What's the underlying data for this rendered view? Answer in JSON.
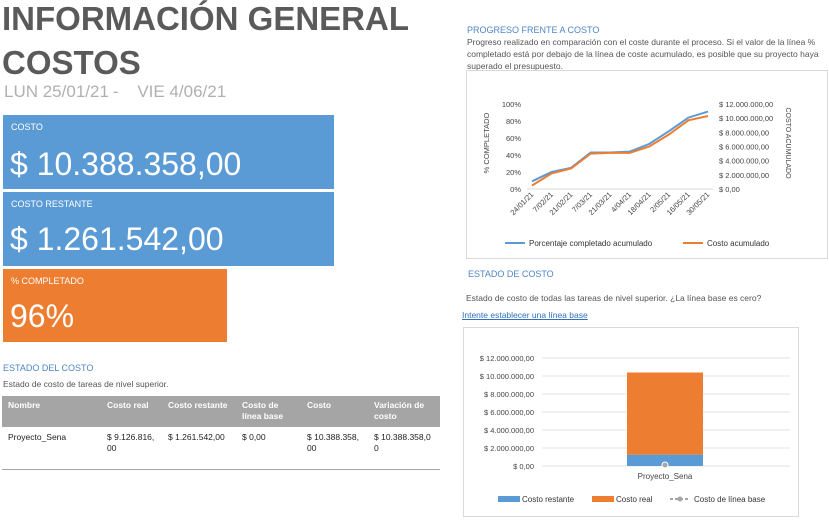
{
  "header": {
    "title_line1": "INFORMACIÓN GENERAL",
    "title_line2": "COSTOS",
    "date_start": "LUN 25/01/21",
    "date_sep": "-",
    "date_end": "VIE 4/06/21"
  },
  "kpis": {
    "costo": {
      "label": "COSTO",
      "value": "$ 10.388.358,00"
    },
    "costo_restante": {
      "label": "COSTO RESTANTE",
      "value": "$ 1.261.542,00"
    },
    "pct_completado": {
      "label": "% COMPLETADO",
      "value": "96%"
    }
  },
  "estado_del_costo": {
    "heading": "ESTADO DEL COSTO",
    "description": "Estado de costo de tareas de nivel superior.",
    "columns": [
      "Nombre",
      "Costo real",
      "Costo restante",
      "Costo de línea base",
      "Costo",
      "Variación de costo"
    ],
    "rows": [
      [
        "Proyecto_Sena",
        "$ 9.126.816,00",
        "$ 1.261.542,00",
        "$ 0,00",
        "$ 10.388.358,00",
        "$ 10.388.358,00"
      ]
    ]
  },
  "progreso": {
    "heading": "PROGRESO FRENTE A COSTO",
    "description": "Progreso realizado en comparación con el coste durante el proceso. Si el valor de la línea % completado está por debajo de la línea de coste acumulado, es posible que su proyecto haya superado el presupuesto."
  },
  "estado_de_costo": {
    "heading": "ESTADO DE COSTO",
    "description": "Estado de costo de todas las tareas de nivel superior. ¿La línea base es cero?",
    "link": "Intente establecer una línea base"
  },
  "colors": {
    "blue": "#5b9bd5",
    "orange": "#ed7d31",
    "gray": "#a5a5a5",
    "title": "#5a5a5a",
    "heading": "#4e86c6"
  },
  "chart_data": [
    {
      "type": "line",
      "x": [
        "24/01/21",
        "7/02/21",
        "21/02/21",
        "7/03/21",
        "21/03/21",
        "4/04/21",
        "18/04/21",
        "2/05/21",
        "16/05/21",
        "30/05/21"
      ],
      "series": [
        {
          "name": "Porcentaje completado acumulado",
          "axis": "left",
          "values": [
            0.09,
            0.2,
            0.25,
            0.43,
            0.43,
            0.44,
            0.53,
            0.68,
            0.84,
            0.91
          ],
          "color": "#5b9bd5"
        },
        {
          "name": "Costo acumulado",
          "axis": "right",
          "values": [
            500000,
            2200000,
            2900000,
            5000000,
            5100000,
            5100000,
            6000000,
            7700000,
            9700000,
            10300000
          ],
          "color": "#ed7d31"
        }
      ],
      "y_left": {
        "label": "% COMPLETADO",
        "ticks": [
          "0%",
          "20%",
          "40%",
          "60%",
          "80%",
          "100%"
        ],
        "range": [
          0,
          1
        ]
      },
      "y_right": {
        "label": "COSTO ACUMULADO",
        "ticks": [
          "$ 0,00",
          "$ 2.000.000,00",
          "$ 4.000.000,00",
          "$ 6.000.000,00",
          "$ 8.000.000,00",
          "$ 10.000.000,00",
          "$ 12.000.000,00"
        ],
        "range": [
          0,
          12000000
        ]
      },
      "legend": "bottom"
    },
    {
      "type": "bar",
      "stacked": true,
      "categories": [
        "Proyecto_Sena"
      ],
      "series": [
        {
          "name": "Costo restante",
          "values": [
            1261542
          ],
          "color": "#5b9bd5"
        },
        {
          "name": "Costo real",
          "values": [
            9126816
          ],
          "color": "#ed7d31"
        },
        {
          "name": "Costo de línea base",
          "values": [
            0
          ],
          "color": "#a5a5a5",
          "style": "line-marker"
        }
      ],
      "y": {
        "ticks": [
          "$ 0,00",
          "$ 2.000.000,00",
          "$ 4.000.000,00",
          "$ 6.000.000,00",
          "$ 8.000.000,00",
          "$ 10.000.000,00",
          "$ 12.000.000,00"
        ],
        "range": [
          0,
          12000000
        ]
      },
      "grid": true,
      "legend": "bottom"
    }
  ]
}
